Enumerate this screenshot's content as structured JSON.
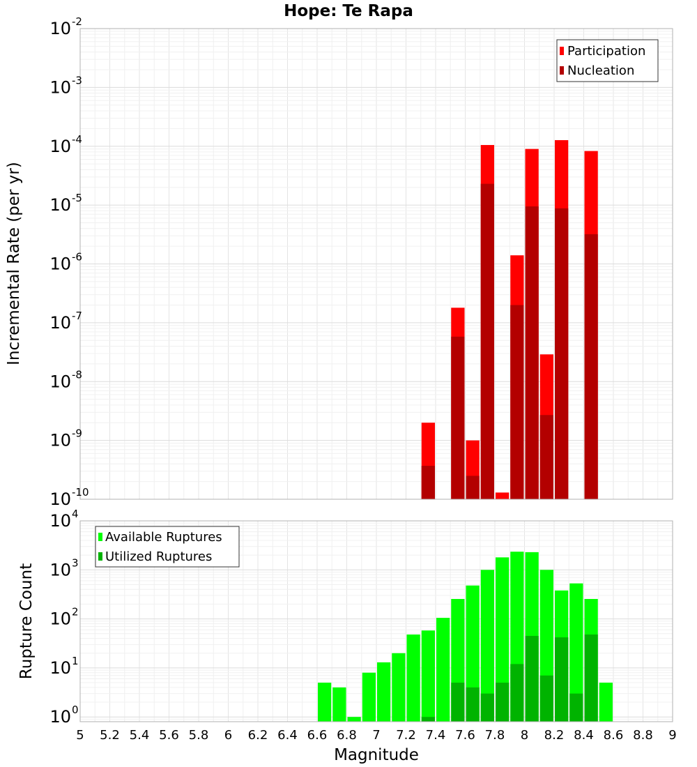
{
  "chart_data": [
    {
      "type": "bar",
      "title": "Hope: Te Rapa",
      "ylabel": "Incremental Rate (per yr)",
      "xlabel": "",
      "yscale": "log",
      "ylim": [
        1e-10,
        0.01
      ],
      "xlim": [
        5,
        9
      ],
      "grid": true,
      "legend_position": "top-right",
      "bar_width": 0.1,
      "x": [
        7.35,
        7.55,
        7.65,
        7.75,
        7.85,
        7.95,
        8.05,
        8.15,
        8.25,
        8.45
      ],
      "series": [
        {
          "name": "Participation",
          "color": "#ff0000",
          "values": [
            2e-09,
            1.8e-07,
            1e-09,
            0.000105,
            1.3e-10,
            1.4e-06,
            9e-05,
            2.9e-08,
            0.000127,
            8.3e-05
          ]
        },
        {
          "name": "Nucleation",
          "color": "#b30000",
          "values": [
            3.7e-10,
            5.8e-08,
            2.5e-10,
            2.3e-05,
            null,
            2e-07,
            9.5e-06,
            2.7e-09,
            8.8e-06,
            3.2e-06
          ]
        }
      ]
    },
    {
      "type": "bar",
      "title": "",
      "ylabel": "Rupture Count",
      "xlabel": "Magnitude",
      "yscale": "log",
      "ylim": [
        0.8,
        10000
      ],
      "xlim": [
        5,
        9
      ],
      "grid": true,
      "legend_position": "top-left",
      "bar_width": 0.1,
      "x": [
        6.65,
        6.75,
        6.85,
        6.95,
        7.05,
        7.15,
        7.25,
        7.35,
        7.45,
        7.55,
        7.65,
        7.75,
        7.85,
        7.95,
        8.05,
        8.15,
        8.25,
        8.35,
        8.45,
        8.55
      ],
      "series": [
        {
          "name": "Available Ruptures",
          "color": "#00ff00",
          "values": [
            5,
            4,
            1,
            8,
            13,
            20,
            48,
            58,
            105,
            255,
            480,
            1000,
            1800,
            2350,
            2300,
            1000,
            380,
            530,
            255,
            5
          ]
        },
        {
          "name": "Utilized Ruptures",
          "color": "#00b300",
          "values": [
            null,
            null,
            null,
            null,
            null,
            null,
            null,
            1,
            null,
            5,
            4,
            3,
            5,
            12,
            45,
            7,
            42,
            3,
            48,
            null
          ]
        }
      ],
      "x_ticks": [
        "5",
        "5.2",
        "5.4",
        "5.6",
        "5.8",
        "6",
        "6.2",
        "6.4",
        "6.6",
        "6.8",
        "7",
        "7.2",
        "7.4",
        "7.6",
        "7.8",
        "8",
        "8.2",
        "8.4",
        "8.6",
        "8.8",
        "9"
      ]
    }
  ]
}
